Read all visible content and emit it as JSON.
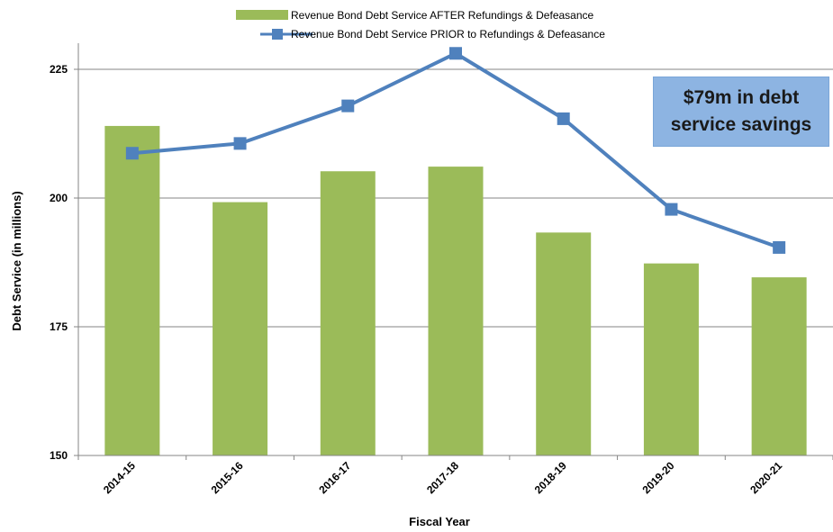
{
  "chart_data": {
    "type": "bar",
    "categories": [
      "2014-15",
      "2015-16",
      "2016-17",
      "2017-18",
      "2018-19",
      "2019-20",
      "2020-21"
    ],
    "series": [
      {
        "name": "Revenue Bond Debt Service AFTER Refundings & Defeasance",
        "kind": "bar",
        "color": "#9bbb59",
        "values": [
          214,
          199.2,
          205.2,
          206.1,
          193.3,
          187.3,
          184.6
        ]
      },
      {
        "name": "Revenue Bond Debt Service PRIOR to Refundings & Defeasance",
        "kind": "line",
        "color": "#4f81bd",
        "values": [
          208.7,
          210.6,
          217.9,
          228.1,
          215.4,
          197.8,
          190.4
        ]
      }
    ],
    "yticks": [
      150,
      175,
      200,
      225
    ],
    "ylim": [
      150,
      230
    ],
    "xlabel": "Fiscal Year",
    "ylabel": "Debt Service (in millions)",
    "legend_position": "top-center",
    "grid": "horizontal",
    "annotation": "$79m in debt service savings"
  }
}
